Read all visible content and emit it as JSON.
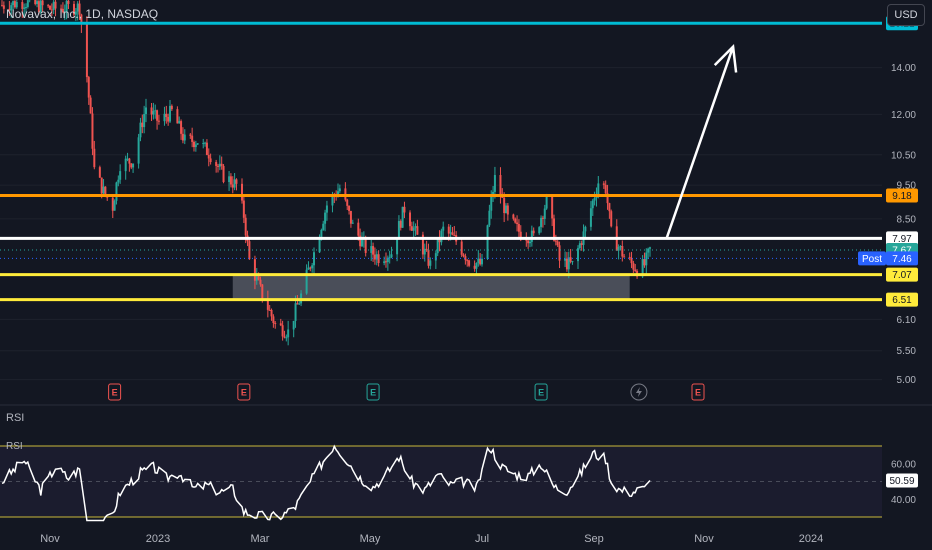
{
  "header": {
    "symbol_title": "Novavax, Inc., 1D, NASDAQ",
    "currency": "USD"
  },
  "rsi_pane": {
    "label": "RSI",
    "series_label": "RSI",
    "value": "50.59"
  },
  "colors": {
    "background": "#131722",
    "up": "#26a69a",
    "down": "#ef5350",
    "cyan": "#00bcd4",
    "orange": "#ff9800",
    "white": "#ffffff",
    "yellow": "#ffeb3b",
    "rsi_band": "#c9b93a",
    "zone": "#787b86"
  },
  "chart_data": {
    "type": "candlestick",
    "symbol": "Novavax, Inc., 1D, NASDAQ",
    "currency": "USD",
    "x_axis_labels": [
      "Nov",
      "2023",
      "Mar",
      "May",
      "Jul",
      "Sep",
      "Nov",
      "2024"
    ],
    "y_axis_ticks": [
      "14.00",
      "12.00",
      "10.50",
      "9.50",
      "8.50",
      "6.10",
      "5.50",
      "5.00"
    ],
    "ylim": [
      4.8,
      17.5
    ],
    "log_scale": true,
    "horizontal_levels": [
      {
        "label": "16.21",
        "value": 16.21,
        "color": "#00bcd4"
      },
      {
        "label": "9.18",
        "value": 9.18,
        "color": "#ff9800"
      },
      {
        "label": "7.97",
        "value": 7.97,
        "color": "#ffffff"
      },
      {
        "label": "7.07",
        "value": 7.07,
        "color": "#ffeb3b"
      },
      {
        "label": "6.51",
        "value": 6.51,
        "color": "#ffeb3b"
      }
    ],
    "price_badges": [
      {
        "label": "7.67",
        "value": 7.67,
        "color": "#26a69a"
      },
      {
        "label": "Post",
        "value": 7.46,
        "color": "#2962ff"
      },
      {
        "label": "7.46",
        "value": 7.46,
        "color": "#2962ff"
      }
    ],
    "support_zone": {
      "from_date": "2023-02-22",
      "to_date": "2023-09-25",
      "low": 6.51,
      "high": 7.07
    },
    "projection_arrow": {
      "from_date": "2023-10-15",
      "from_value": 7.97,
      "to_date": "2023-11-20",
      "to_value": 15.0
    },
    "event_markers": [
      {
        "date": "2022-12-20",
        "type": "E",
        "color": "#ef5350"
      },
      {
        "date": "2023-02-28",
        "type": "E",
        "color": "#ef5350"
      },
      {
        "date": "2023-05-09",
        "type": "E",
        "color": "#26a69a"
      },
      {
        "date": "2023-08-08",
        "type": "E",
        "color": "#26a69a"
      },
      {
        "date": "2023-09-30",
        "type": "dividend",
        "color": "#787b86"
      },
      {
        "date": "2023-11-01",
        "type": "E",
        "color": "#ef5350"
      }
    ],
    "close_series": [
      {
        "date": "2022-10-20",
        "close": 17.2
      },
      {
        "date": "2022-11-01",
        "close": 17.4
      },
      {
        "date": "2022-11-15",
        "close": 17.0
      },
      {
        "date": "2022-12-01",
        "close": 17.1
      },
      {
        "date": "2022-12-05",
        "close": 13.6
      },
      {
        "date": "2022-12-09",
        "close": 10.0
      },
      {
        "date": "2022-12-14",
        "close": 9.3
      },
      {
        "date": "2022-12-19",
        "close": 8.85
      },
      {
        "date": "2022-12-23",
        "close": 10.2
      },
      {
        "date": "2022-12-30",
        "close": 10.3
      },
      {
        "date": "2023-01-06",
        "close": 12.3
      },
      {
        "date": "2023-01-13",
        "close": 11.7
      },
      {
        "date": "2023-01-20",
        "close": 12.1
      },
      {
        "date": "2023-01-27",
        "close": 11.0
      },
      {
        "date": "2023-02-03",
        "close": 11.0
      },
      {
        "date": "2023-02-10",
        "close": 10.5
      },
      {
        "date": "2023-02-17",
        "close": 9.8
      },
      {
        "date": "2023-02-24",
        "close": 9.5
      },
      {
        "date": "2023-02-28",
        "close": 8.6
      },
      {
        "date": "2023-03-03",
        "close": 7.4
      },
      {
        "date": "2023-03-10",
        "close": 6.6
      },
      {
        "date": "2023-03-17",
        "close": 6.0
      },
      {
        "date": "2023-03-24",
        "close": 5.85
      },
      {
        "date": "2023-03-31",
        "close": 6.6
      },
      {
        "date": "2023-04-07",
        "close": 7.6
      },
      {
        "date": "2023-04-14",
        "close": 8.9
      },
      {
        "date": "2023-04-21",
        "close": 9.4
      },
      {
        "date": "2023-04-28",
        "close": 8.3
      },
      {
        "date": "2023-05-05",
        "close": 7.7
      },
      {
        "date": "2023-05-12",
        "close": 7.5
      },
      {
        "date": "2023-05-19",
        "close": 7.6
      },
      {
        "date": "2023-05-26",
        "close": 8.8
      },
      {
        "date": "2023-06-02",
        "close": 8.0
      },
      {
        "date": "2023-06-09",
        "close": 7.3
      },
      {
        "date": "2023-06-16",
        "close": 8.2
      },
      {
        "date": "2023-06-23",
        "close": 7.9
      },
      {
        "date": "2023-06-30",
        "close": 7.4
      },
      {
        "date": "2023-07-07",
        "close": 7.3
      },
      {
        "date": "2023-07-14",
        "close": 9.7
      },
      {
        "date": "2023-07-21",
        "close": 8.5
      },
      {
        "date": "2023-07-28",
        "close": 8.1
      },
      {
        "date": "2023-08-04",
        "close": 8.0
      },
      {
        "date": "2023-08-11",
        "close": 9.0
      },
      {
        "date": "2023-08-18",
        "close": 7.4
      },
      {
        "date": "2023-08-25",
        "close": 7.3
      },
      {
        "date": "2023-09-01",
        "close": 8.2
      },
      {
        "date": "2023-09-08",
        "close": 9.6
      },
      {
        "date": "2023-09-12",
        "close": 9.4
      },
      {
        "date": "2023-09-15",
        "close": 8.1
      },
      {
        "date": "2023-09-22",
        "close": 7.5
      },
      {
        "date": "2023-09-29",
        "close": 7.2
      },
      {
        "date": "2023-10-03",
        "close": 7.3
      },
      {
        "date": "2023-10-06",
        "close": 7.67
      }
    ],
    "rsi": {
      "value": 50.59,
      "band_upper": 70,
      "band_lower": 30,
      "y_ticks": [
        "60.00",
        "40.00"
      ],
      "series": [
        {
          "date": "2022-10-20",
          "value": 50
        },
        {
          "date": "2022-11-01",
          "value": 62
        },
        {
          "date": "2022-11-10",
          "value": 45
        },
        {
          "date": "2022-11-18",
          "value": 58
        },
        {
          "date": "2022-11-25",
          "value": 52
        },
        {
          "date": "2022-12-01",
          "value": 57
        },
        {
          "date": "2022-12-05",
          "value": 28
        },
        {
          "date": "2022-12-12",
          "value": 24
        },
        {
          "date": "2022-12-19",
          "value": 32
        },
        {
          "date": "2022-12-23",
          "value": 44
        },
        {
          "date": "2023-01-03",
          "value": 55
        },
        {
          "date": "2023-01-10",
          "value": 58
        },
        {
          "date": "2023-01-17",
          "value": 52
        },
        {
          "date": "2023-01-24",
          "value": 55
        },
        {
          "date": "2023-02-01",
          "value": 46
        },
        {
          "date": "2023-02-08",
          "value": 48
        },
        {
          "date": "2023-02-15",
          "value": 44
        },
        {
          "date": "2023-02-22",
          "value": 46
        },
        {
          "date": "2023-02-28",
          "value": 33
        },
        {
          "date": "2023-03-07",
          "value": 31
        },
        {
          "date": "2023-03-14",
          "value": 30
        },
        {
          "date": "2023-03-21",
          "value": 31
        },
        {
          "date": "2023-03-28",
          "value": 36
        },
        {
          "date": "2023-04-04",
          "value": 48
        },
        {
          "date": "2023-04-11",
          "value": 60
        },
        {
          "date": "2023-04-18",
          "value": 71
        },
        {
          "date": "2023-04-25",
          "value": 62
        },
        {
          "date": "2023-05-02",
          "value": 52
        },
        {
          "date": "2023-05-09",
          "value": 47
        },
        {
          "date": "2023-05-16",
          "value": 54
        },
        {
          "date": "2023-05-23",
          "value": 64
        },
        {
          "date": "2023-05-30",
          "value": 50
        },
        {
          "date": "2023-06-06",
          "value": 45
        },
        {
          "date": "2023-06-13",
          "value": 54
        },
        {
          "date": "2023-06-20",
          "value": 48
        },
        {
          "date": "2023-06-27",
          "value": 50
        },
        {
          "date": "2023-07-04",
          "value": 46
        },
        {
          "date": "2023-07-11",
          "value": 70
        },
        {
          "date": "2023-07-18",
          "value": 58
        },
        {
          "date": "2023-07-25",
          "value": 54
        },
        {
          "date": "2023-08-01",
          "value": 53
        },
        {
          "date": "2023-08-08",
          "value": 60
        },
        {
          "date": "2023-08-15",
          "value": 47
        },
        {
          "date": "2023-08-22",
          "value": 45
        },
        {
          "date": "2023-08-29",
          "value": 54
        },
        {
          "date": "2023-09-05",
          "value": 66
        },
        {
          "date": "2023-09-12",
          "value": 63
        },
        {
          "date": "2023-09-15",
          "value": 50
        },
        {
          "date": "2023-09-20",
          "value": 45
        },
        {
          "date": "2023-09-26",
          "value": 44
        },
        {
          "date": "2023-10-02",
          "value": 46
        },
        {
          "date": "2023-10-06",
          "value": 50.59
        }
      ]
    }
  }
}
